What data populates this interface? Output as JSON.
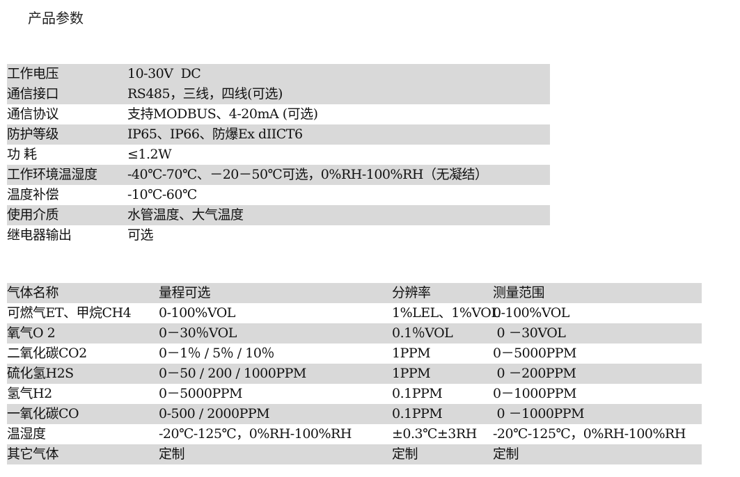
{
  "title": "产品参数",
  "params": [
    {
      "label": "工作电压",
      "value": "10-30V  DC"
    },
    {
      "label": "通信接口",
      "value": "RS485，三线，四线(可选)"
    },
    {
      "label": "通信协议",
      "value": "支持MODBUS、4-20mA (可选)"
    },
    {
      "label": "防护等级",
      "value": "IP65、IP66、防爆Ex dIICT6"
    },
    {
      "label": "功 耗",
      "value": "≤1.2W"
    },
    {
      "label": "工作环境温湿度",
      "value": "-40℃-70℃、－20－50℃可选，0%RH-100%RH（无凝结）"
    },
    {
      "label": "温度补偿",
      "value": "-10℃-60℃"
    },
    {
      "label": "使用介质",
      "value": "水管温度、大气温度"
    },
    {
      "label": "继电器输出",
      "value": "可选"
    }
  ],
  "gas_table": {
    "headers": [
      "气体名称",
      "量程可选",
      "分辨率",
      "测量范围"
    ],
    "rows": [
      [
        "可燃气ET、甲烷CH4",
        "0-100%VOL",
        "1%LEL、1%VOL",
        "0-100%VOL"
      ],
      [
        "氧气O 2",
        "0－30％VOL",
        "0.1％VOL",
        " 0 －30VOL"
      ],
      [
        "二氧化碳CO2",
        "0－1％ / 5％ / 10％",
        "1PPM",
        "0－5000PPM"
      ],
      [
        "硫化氢H2S",
        "0－50 / 200 / 1000PPM",
        "1PPM",
        " 0 －200PPM"
      ],
      [
        "氢气H2",
        "0－5000PPM",
        "0.1PPM",
        "0－1000PPM"
      ],
      [
        "一氧化碳CO",
        "0-500 / 2000PPM",
        "0.1PPM",
        " 0 －1000PPM"
      ],
      [
        "温湿度",
        "-20℃-125℃，0%RH-100%RH",
        "±0.3℃±3RH",
        "-20℃-125℃，0%RH-100%RH"
      ],
      [
        "其它气体",
        "定制",
        "定制",
        "定制"
      ]
    ]
  }
}
